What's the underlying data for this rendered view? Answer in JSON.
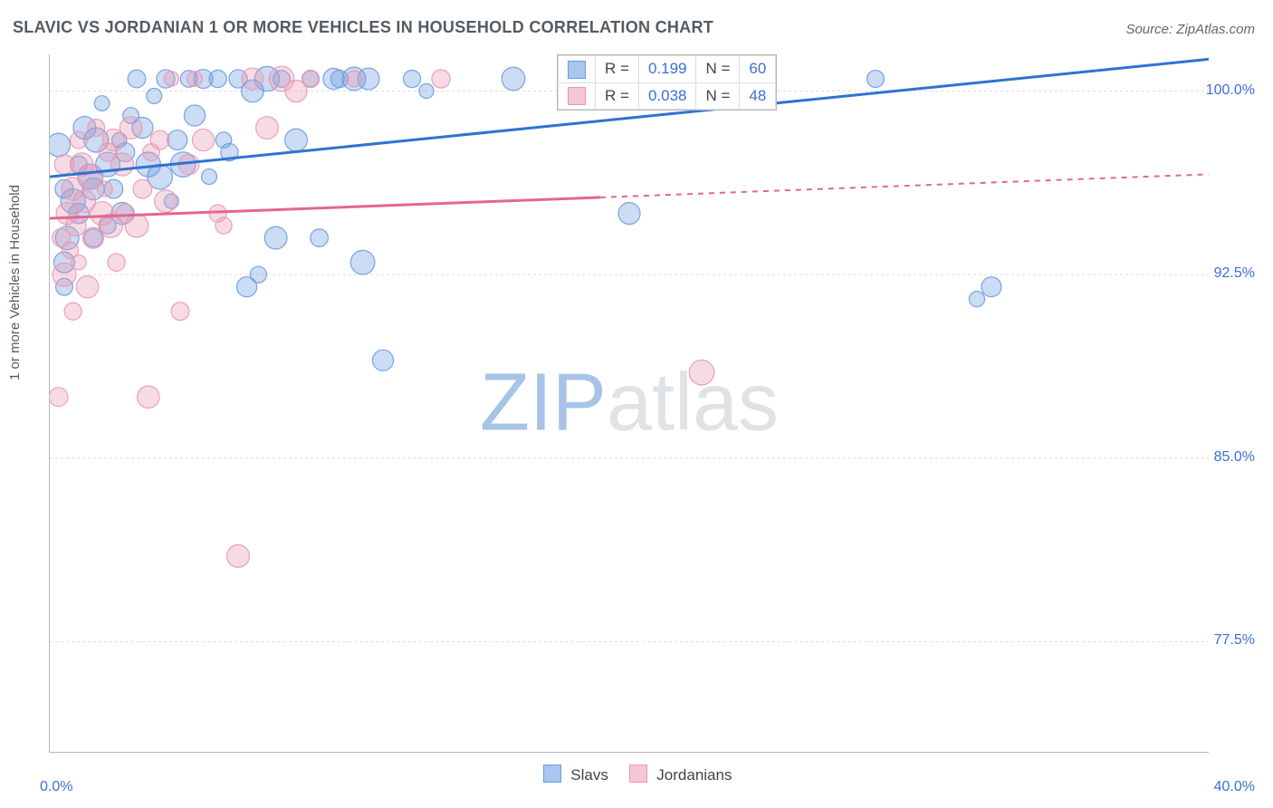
{
  "title": "SLAVIC VS JORDANIAN 1 OR MORE VEHICLES IN HOUSEHOLD CORRELATION CHART",
  "source_label": "Source: ZipAtlas.com",
  "y_label": "1 or more Vehicles in Household",
  "watermark": {
    "part1": "ZIP",
    "part2": "atlas"
  },
  "chart": {
    "type": "scatter",
    "xlim": [
      0.0,
      40.0
    ],
    "ylim": [
      73.0,
      101.5
    ],
    "x_ticks_major": [
      0.0,
      20.0,
      40.0
    ],
    "x_tick_labels": [
      "0.0%",
      "40.0%"
    ],
    "x_tick_label_positions": [
      0.0,
      40.0
    ],
    "x_ticks_minor": [
      3.3,
      6.6,
      10.0,
      13.3,
      16.6,
      23.3,
      26.6,
      30.0,
      33.3,
      36.6
    ],
    "y_ticks": [
      77.5,
      85.0,
      92.5,
      100.0
    ],
    "y_tick_labels": [
      "77.5%",
      "85.0%",
      "92.5%",
      "100.0%"
    ],
    "grid_color": "#dcdcdc",
    "axis_color": "#b8b8b8",
    "background_color": "#ffffff",
    "marker_radius_min": 8,
    "marker_radius_max": 14,
    "marker_fill_opacity": 0.35,
    "marker_stroke_opacity": 0.9,
    "trend_line_width": 3,
    "series": [
      {
        "name": "Slavs",
        "color": "#6a9be0",
        "line_color": "#2f73d0",
        "r": "0.199",
        "n": "60",
        "trend": {
          "x1": 0.0,
          "y1": 96.5,
          "x2": 40.0,
          "y2": 101.3,
          "solid_until_x": 40.0
        },
        "points": [
          [
            0.3,
            97.8
          ],
          [
            0.5,
            96.0
          ],
          [
            0.5,
            93.0
          ],
          [
            0.5,
            92.0
          ],
          [
            0.6,
            94.0
          ],
          [
            0.8,
            95.5
          ],
          [
            1.0,
            97.0
          ],
          [
            1.0,
            95.0
          ],
          [
            1.2,
            98.5
          ],
          [
            1.4,
            96.5
          ],
          [
            1.5,
            94.0
          ],
          [
            1.5,
            96.0
          ],
          [
            1.6,
            98.0
          ],
          [
            1.8,
            99.5
          ],
          [
            2.0,
            97.0
          ],
          [
            2.0,
            94.5
          ],
          [
            2.2,
            96.0
          ],
          [
            2.4,
            98.0
          ],
          [
            2.5,
            95.0
          ],
          [
            2.6,
            97.5
          ],
          [
            2.8,
            99.0
          ],
          [
            3.0,
            100.5
          ],
          [
            3.2,
            98.5
          ],
          [
            3.4,
            97.0
          ],
          [
            3.6,
            99.8
          ],
          [
            3.8,
            96.5
          ],
          [
            4.0,
            100.5
          ],
          [
            4.2,
            95.5
          ],
          [
            4.4,
            98.0
          ],
          [
            4.6,
            97.0
          ],
          [
            4.8,
            100.5
          ],
          [
            5.0,
            99.0
          ],
          [
            5.3,
            100.5
          ],
          [
            5.5,
            96.5
          ],
          [
            5.8,
            100.5
          ],
          [
            6.0,
            98.0
          ],
          [
            6.2,
            97.5
          ],
          [
            6.5,
            100.5
          ],
          [
            6.8,
            92.0
          ],
          [
            7.0,
            100.0
          ],
          [
            7.2,
            92.5
          ],
          [
            7.5,
            100.5
          ],
          [
            7.8,
            94.0
          ],
          [
            8.0,
            100.5
          ],
          [
            8.5,
            98.0
          ],
          [
            9.0,
            100.5
          ],
          [
            9.3,
            94.0
          ],
          [
            9.8,
            100.5
          ],
          [
            10.0,
            100.5
          ],
          [
            10.5,
            100.5
          ],
          [
            10.8,
            93.0
          ],
          [
            11.0,
            100.5
          ],
          [
            11.5,
            89.0
          ],
          [
            12.5,
            100.5
          ],
          [
            13.0,
            100.0
          ],
          [
            16.0,
            100.5
          ],
          [
            20.0,
            95.0
          ],
          [
            28.5,
            100.5
          ],
          [
            32.0,
            91.5
          ],
          [
            32.5,
            92.0
          ]
        ]
      },
      {
        "name": "Jordanians",
        "color": "#e997b1",
        "line_color": "#e36790",
        "r": "0.038",
        "n": "48",
        "trend": {
          "x1": 0.0,
          "y1": 94.8,
          "x2": 40.0,
          "y2": 96.6,
          "solid_until_x": 19.0
        },
        "points": [
          [
            0.3,
            87.5
          ],
          [
            0.4,
            94.0
          ],
          [
            0.5,
            92.5
          ],
          [
            0.5,
            97.0
          ],
          [
            0.6,
            95.0
          ],
          [
            0.7,
            93.5
          ],
          [
            0.8,
            91.0
          ],
          [
            0.8,
            96.0
          ],
          [
            0.9,
            94.5
          ],
          [
            1.0,
            93.0
          ],
          [
            1.0,
            98.0
          ],
          [
            1.1,
            97.0
          ],
          [
            1.2,
            95.5
          ],
          [
            1.3,
            92.0
          ],
          [
            1.4,
            96.5
          ],
          [
            1.5,
            94.0
          ],
          [
            1.6,
            98.5
          ],
          [
            1.8,
            95.0
          ],
          [
            1.9,
            96.0
          ],
          [
            2.0,
            97.5
          ],
          [
            2.1,
            94.5
          ],
          [
            2.2,
            98.0
          ],
          [
            2.3,
            93.0
          ],
          [
            2.5,
            97.0
          ],
          [
            2.6,
            95.0
          ],
          [
            2.8,
            98.5
          ],
          [
            3.0,
            94.5
          ],
          [
            3.2,
            96.0
          ],
          [
            3.4,
            87.5
          ],
          [
            3.5,
            97.5
          ],
          [
            3.8,
            98.0
          ],
          [
            4.0,
            95.5
          ],
          [
            4.2,
            100.5
          ],
          [
            4.5,
            91.0
          ],
          [
            4.8,
            97.0
          ],
          [
            5.0,
            100.5
          ],
          [
            5.3,
            98.0
          ],
          [
            5.8,
            95.0
          ],
          [
            6.0,
            94.5
          ],
          [
            6.5,
            81.0
          ],
          [
            7.0,
            100.5
          ],
          [
            7.5,
            98.5
          ],
          [
            8.0,
            100.5
          ],
          [
            8.5,
            100.0
          ],
          [
            9.0,
            100.5
          ],
          [
            10.5,
            100.5
          ],
          [
            13.5,
            100.5
          ],
          [
            22.5,
            88.5
          ]
        ]
      }
    ]
  },
  "legend_bottom": [
    {
      "label": "Slavs",
      "fill": "#a9c6ee",
      "border": "#6a9be0"
    },
    {
      "label": "Jordanians",
      "fill": "#f5c6d6",
      "border": "#e997b1"
    }
  ],
  "colors": {
    "title": "#555a63",
    "axis_label": "#3b6fd6",
    "grid": "#dcdcdc"
  },
  "fonts": {
    "title_pt": 18,
    "axis_label_pt": 16,
    "legend_pt": 17
  }
}
